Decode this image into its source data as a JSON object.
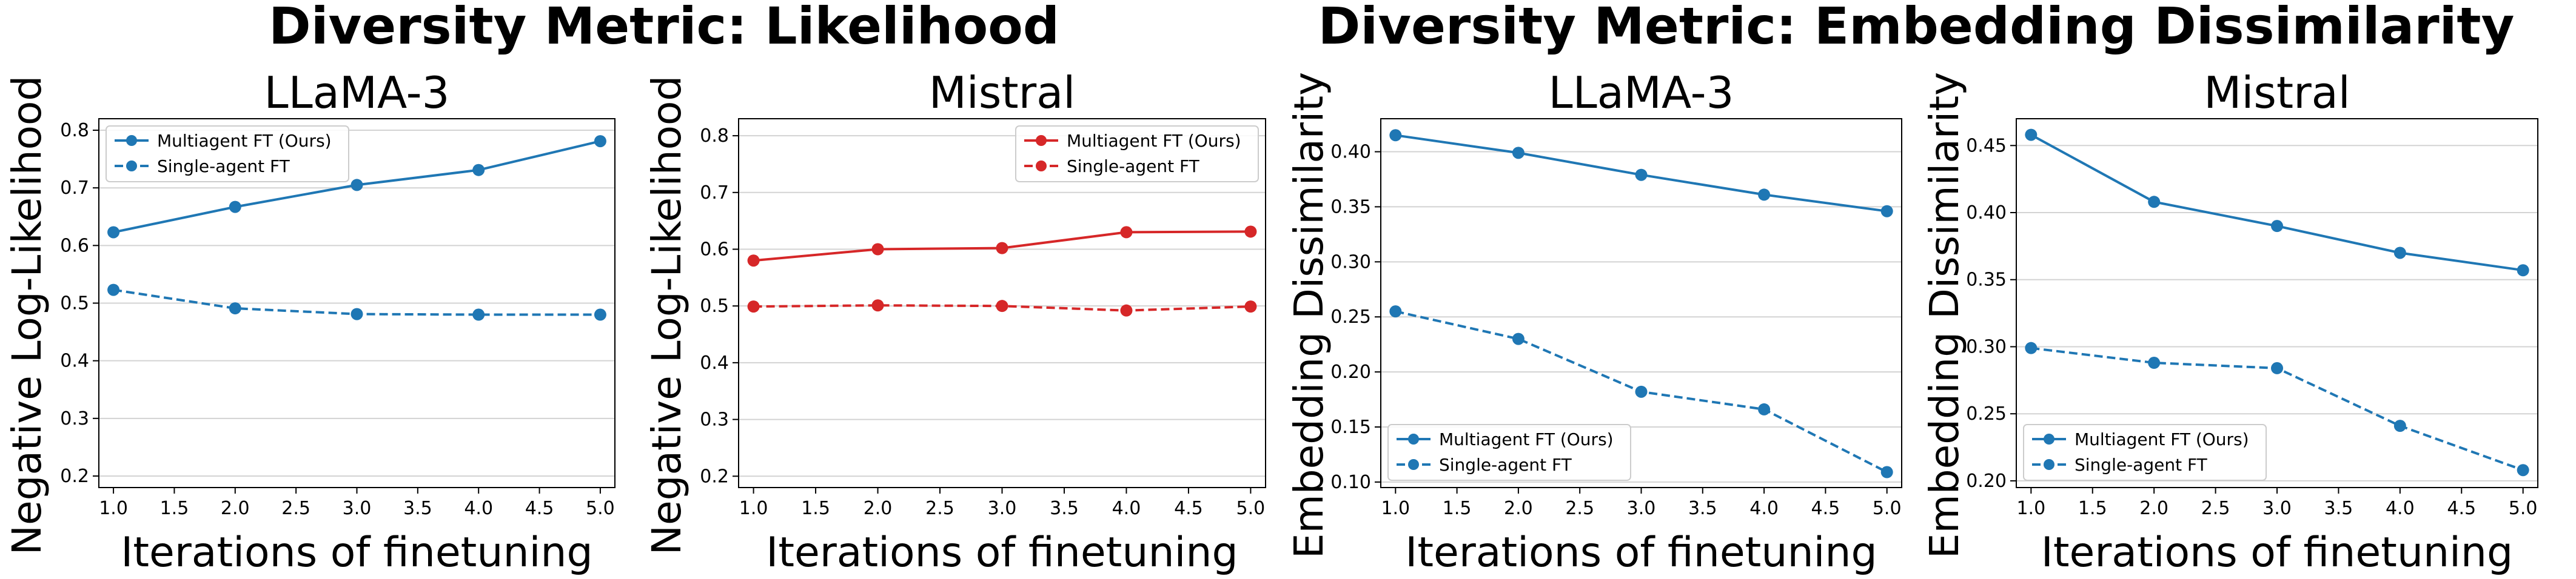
{
  "figure": {
    "group_titles": [
      "Diversity Metric: Likelihood",
      "Diversity Metric: Embedding Dissimilarity"
    ]
  },
  "colors": {
    "blue": "#1f77b4",
    "red": "#d62728",
    "grid": "#d3d3d3"
  },
  "chart_data": [
    {
      "type": "line",
      "title": "LLaMA-3",
      "xlabel": "Iterations of finetuning",
      "ylabel": "Negative Log-Likelihood",
      "x": [
        1.0,
        2.0,
        3.0,
        4.0,
        5.0
      ],
      "xlim": [
        0.88,
        5.12
      ],
      "ylim": [
        0.18,
        0.82
      ],
      "xticks": [
        "1.0",
        "1.5",
        "2.0",
        "2.5",
        "3.0",
        "3.5",
        "4.0",
        "4.5",
        "5.0"
      ],
      "yticks": [
        "0.2",
        "0.3",
        "0.4",
        "0.5",
        "0.6",
        "0.7",
        "0.8"
      ],
      "grid": "horizontal",
      "legend_position": "upper-left",
      "series": [
        {
          "name": "Multiagent FT (Ours)",
          "color": "#1f77b4",
          "style": "solid",
          "values": [
            0.623,
            0.667,
            0.705,
            0.731,
            0.781
          ]
        },
        {
          "name": "Single-agent FT",
          "color": "#1f77b4",
          "style": "dashed",
          "values": [
            0.523,
            0.491,
            0.481,
            0.48,
            0.48
          ]
        }
      ]
    },
    {
      "type": "line",
      "title": "Mistral",
      "xlabel": "Iterations of finetuning",
      "ylabel": "Negative Log-Likelihood",
      "x": [
        1.0,
        2.0,
        3.0,
        4.0,
        5.0
      ],
      "xlim": [
        0.88,
        5.12
      ],
      "ylim": [
        0.18,
        0.83
      ],
      "xticks": [
        "1.0",
        "1.5",
        "2.0",
        "2.5",
        "3.0",
        "3.5",
        "4.0",
        "4.5",
        "5.0"
      ],
      "yticks": [
        "0.2",
        "0.3",
        "0.4",
        "0.5",
        "0.6",
        "0.7",
        "0.8"
      ],
      "grid": "horizontal",
      "legend_position": "upper-right",
      "series": [
        {
          "name": "Multiagent FT (Ours)",
          "color": "#d62728",
          "style": "solid",
          "values": [
            0.58,
            0.6,
            0.602,
            0.63,
            0.631
          ]
        },
        {
          "name": "Single-agent FT",
          "color": "#d62728",
          "style": "dashed",
          "values": [
            0.499,
            0.501,
            0.5,
            0.492,
            0.499
          ]
        }
      ]
    },
    {
      "type": "line",
      "title": "LLaMA-3",
      "xlabel": "Iterations of finetuning",
      "ylabel": "Embedding Dissimilarity",
      "x": [
        1.0,
        2.0,
        3.0,
        4.0,
        5.0
      ],
      "xlim": [
        0.88,
        5.12
      ],
      "ylim": [
        0.095,
        0.43
      ],
      "xticks": [
        "1.0",
        "1.5",
        "2.0",
        "2.5",
        "3.0",
        "3.5",
        "4.0",
        "4.5",
        "5.0"
      ],
      "yticks": [
        "0.10",
        "0.15",
        "0.20",
        "0.25",
        "0.30",
        "0.35",
        "0.40"
      ],
      "grid": "horizontal",
      "legend_position": "lower-left",
      "series": [
        {
          "name": "Multiagent FT (Ours)",
          "color": "#1f77b4",
          "style": "solid",
          "values": [
            0.415,
            0.399,
            0.379,
            0.361,
            0.346
          ]
        },
        {
          "name": "Single-agent FT",
          "color": "#1f77b4",
          "style": "dashed",
          "values": [
            0.255,
            0.23,
            0.182,
            0.166,
            0.109
          ]
        }
      ]
    },
    {
      "type": "line",
      "title": "Mistral",
      "xlabel": "Iterations of finetuning",
      "ylabel": "Embedding Dissimilarity",
      "x": [
        1.0,
        2.0,
        3.0,
        4.0,
        5.0
      ],
      "xlim": [
        0.88,
        5.12
      ],
      "ylim": [
        0.195,
        0.47
      ],
      "xticks": [
        "1.0",
        "1.5",
        "2.0",
        "2.5",
        "3.0",
        "3.5",
        "4.0",
        "4.5",
        "5.0"
      ],
      "yticks": [
        "0.20",
        "0.25",
        "0.30",
        "0.35",
        "0.40",
        "0.45"
      ],
      "grid": "horizontal",
      "legend_position": "lower-left",
      "series": [
        {
          "name": "Multiagent FT (Ours)",
          "color": "#1f77b4",
          "style": "solid",
          "values": [
            0.458,
            0.408,
            0.39,
            0.37,
            0.357
          ]
        },
        {
          "name": "Single-agent FT",
          "color": "#1f77b4",
          "style": "dashed",
          "values": [
            0.299,
            0.288,
            0.284,
            0.241,
            0.208
          ]
        }
      ]
    }
  ]
}
